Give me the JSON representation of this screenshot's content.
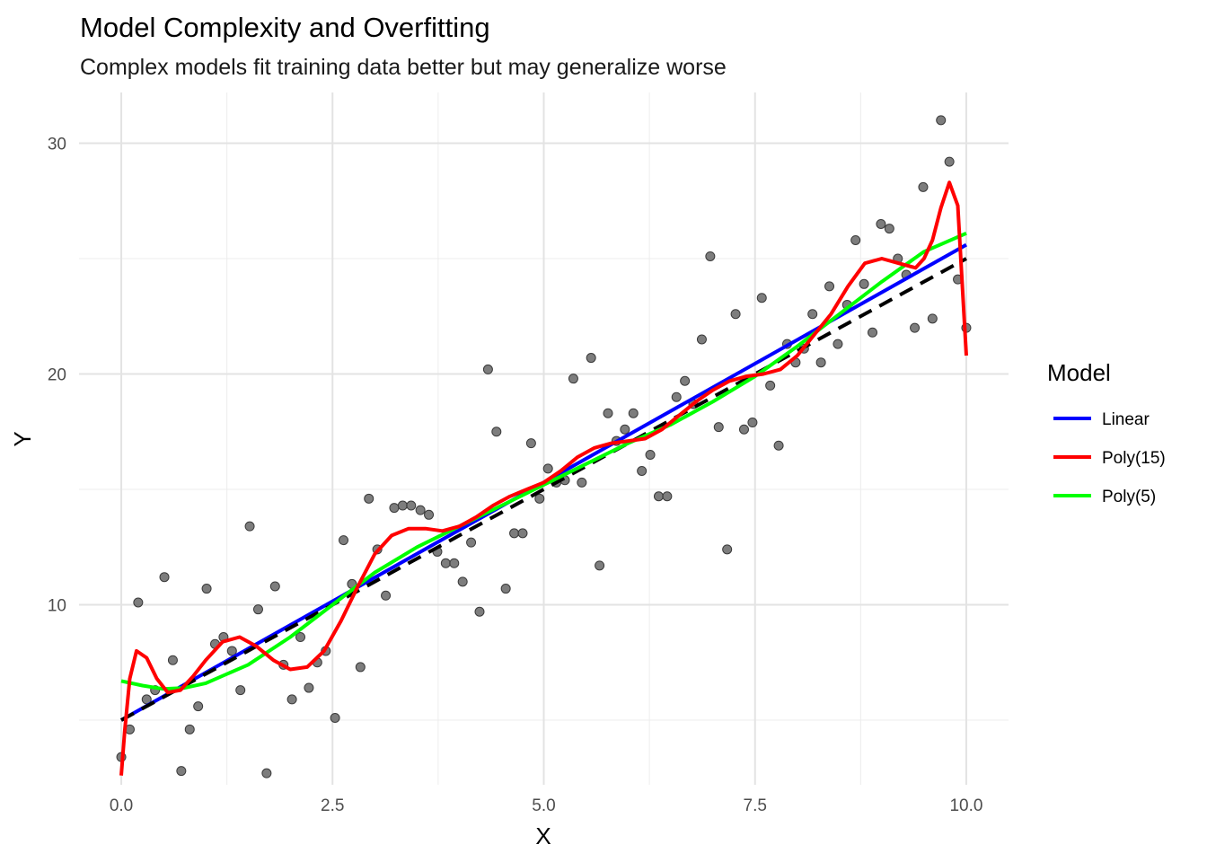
{
  "chart_data": {
    "type": "scatter",
    "title": "Model Complexity and Overfitting",
    "subtitle": "Complex models fit training data better but may generalize worse",
    "xlabel": "X",
    "ylabel": "Y",
    "xlim": [
      -0.5,
      10.5
    ],
    "ylim": [
      2.2,
      32.2
    ],
    "x_ticks": [
      0,
      2.5,
      5,
      7.5,
      10
    ],
    "x_tick_labels": [
      "0.0",
      "2.5",
      "5.0",
      "7.5",
      "10.0"
    ],
    "y_ticks": [
      10,
      20,
      30
    ],
    "y_tick_labels": [
      "10",
      "20",
      "30"
    ],
    "grid": true,
    "legend": {
      "title": "Model",
      "position": "right",
      "entries": [
        {
          "label": "Linear",
          "color": "#0000ff"
        },
        {
          "label": "Poly(15)",
          "color": "#ff0000"
        },
        {
          "label": "Poly(5)",
          "color": "#00ff00"
        }
      ]
    },
    "points": {
      "color": "#666666",
      "x": [
        0.0,
        0.1,
        0.2,
        0.3,
        0.4,
        0.51,
        0.61,
        0.71,
        0.81,
        0.91,
        1.01,
        1.11,
        1.21,
        1.31,
        1.41,
        1.52,
        1.62,
        1.72,
        1.82,
        1.92,
        2.02,
        2.12,
        2.22,
        2.32,
        2.42,
        2.53,
        2.63,
        2.73,
        2.83,
        2.93,
        3.03,
        3.13,
        3.23,
        3.33,
        3.43,
        3.54,
        3.64,
        3.74,
        3.84,
        3.94,
        4.04,
        4.14,
        4.24,
        4.34,
        4.44,
        4.55,
        4.65,
        4.75,
        4.85,
        4.95,
        5.05,
        5.15,
        5.25,
        5.35,
        5.45,
        5.56,
        5.66,
        5.76,
        5.86,
        5.96,
        6.06,
        6.16,
        6.26,
        6.36,
        6.46,
        6.57,
        6.67,
        6.77,
        6.87,
        6.97,
        7.07,
        7.17,
        7.27,
        7.37,
        7.47,
        7.58,
        7.68,
        7.78,
        7.88,
        7.98,
        8.08,
        8.18,
        8.28,
        8.38,
        8.48,
        8.59,
        8.69,
        8.79,
        8.89,
        8.99,
        9.09,
        9.19,
        9.29,
        9.39,
        9.49,
        9.6,
        9.7,
        9.8,
        9.9,
        10.0
      ],
      "y": [
        3.4,
        4.6,
        10.1,
        5.9,
        6.3,
        11.2,
        7.6,
        2.8,
        4.6,
        5.6,
        10.7,
        8.3,
        8.6,
        8.0,
        6.3,
        13.4,
        9.8,
        2.7,
        10.8,
        7.4,
        5.9,
        8.6,
        6.4,
        7.5,
        8.0,
        5.1,
        12.8,
        10.9,
        7.3,
        14.6,
        12.4,
        10.4,
        14.2,
        14.3,
        14.3,
        14.1,
        13.9,
        12.3,
        11.8,
        11.8,
        11.0,
        12.7,
        9.7,
        20.2,
        17.5,
        10.7,
        13.1,
        13.1,
        17.0,
        14.6,
        15.9,
        15.3,
        15.4,
        19.8,
        15.3,
        20.7,
        11.7,
        18.3,
        17.1,
        17.6,
        18.3,
        15.8,
        16.5,
        14.7,
        14.7,
        19.0,
        19.7,
        18.7,
        21.5,
        25.1,
        17.7,
        12.4,
        22.6,
        17.6,
        17.9,
        23.3,
        19.5,
        16.9,
        21.3,
        20.5,
        21.1,
        22.6,
        20.5,
        23.8,
        21.3,
        23.0,
        25.8,
        23.9,
        21.8,
        26.5,
        26.3,
        25.0,
        24.3,
        22.0,
        28.1,
        22.4,
        31.0,
        29.2,
        24.1,
        22.0
      ]
    },
    "series": [
      {
        "name": "Linear",
        "color": "#0000ff",
        "style": "solid",
        "line_width": 4,
        "x": [
          0,
          10
        ],
        "y": [
          5.0,
          25.6
        ]
      },
      {
        "name": "",
        "color": "#000000",
        "style": "dashed",
        "line_width": 4,
        "x": [
          0,
          10
        ],
        "y": [
          5.0,
          25.0
        ]
      },
      {
        "name": "Poly(5)",
        "color": "#00ff00",
        "style": "solid",
        "line_width": 4,
        "x": [
          0,
          0.25,
          0.5,
          0.75,
          1.0,
          1.5,
          2.0,
          2.5,
          3.0,
          3.5,
          4.0,
          4.5,
          5.0,
          5.5,
          6.0,
          6.5,
          7.0,
          7.5,
          8.0,
          8.5,
          9.0,
          9.5,
          10.0
        ],
        "y": [
          6.7,
          6.5,
          6.35,
          6.4,
          6.6,
          7.4,
          8.6,
          10.0,
          11.4,
          12.5,
          13.4,
          14.3,
          15.2,
          16.1,
          17.0,
          17.8,
          18.8,
          19.9,
          21.2,
          22.6,
          24.0,
          25.3,
          26.1
        ]
      },
      {
        "name": "Poly(15)",
        "color": "#ff0000",
        "style": "solid",
        "line_width": 4,
        "x": [
          0,
          0.04,
          0.1,
          0.18,
          0.3,
          0.42,
          0.55,
          0.7,
          0.85,
          1.0,
          1.2,
          1.4,
          1.6,
          1.8,
          2.0,
          2.2,
          2.4,
          2.6,
          2.8,
          3.0,
          3.2,
          3.4,
          3.6,
          3.8,
          4.0,
          4.2,
          4.4,
          4.6,
          4.8,
          5.0,
          5.2,
          5.4,
          5.6,
          5.8,
          6.0,
          6.2,
          6.4,
          6.6,
          6.8,
          7.0,
          7.2,
          7.4,
          7.6,
          7.8,
          8.0,
          8.2,
          8.4,
          8.6,
          8.8,
          9.0,
          9.2,
          9.4,
          9.5,
          9.6,
          9.7,
          9.8,
          9.9,
          9.95,
          10.0
        ],
        "y": [
          2.6,
          4.5,
          6.8,
          8.0,
          7.7,
          6.8,
          6.2,
          6.3,
          6.9,
          7.6,
          8.4,
          8.6,
          8.2,
          7.6,
          7.2,
          7.3,
          8.0,
          9.3,
          10.8,
          12.2,
          13.0,
          13.3,
          13.3,
          13.2,
          13.4,
          13.8,
          14.3,
          14.7,
          15.0,
          15.3,
          15.8,
          16.4,
          16.8,
          17.0,
          17.1,
          17.2,
          17.6,
          18.2,
          18.8,
          19.3,
          19.7,
          19.9,
          20.0,
          20.2,
          20.8,
          21.7,
          22.6,
          23.8,
          24.8,
          25.0,
          24.8,
          24.6,
          25.0,
          25.8,
          27.2,
          28.3,
          27.3,
          24.0,
          20.8
        ]
      }
    ]
  }
}
